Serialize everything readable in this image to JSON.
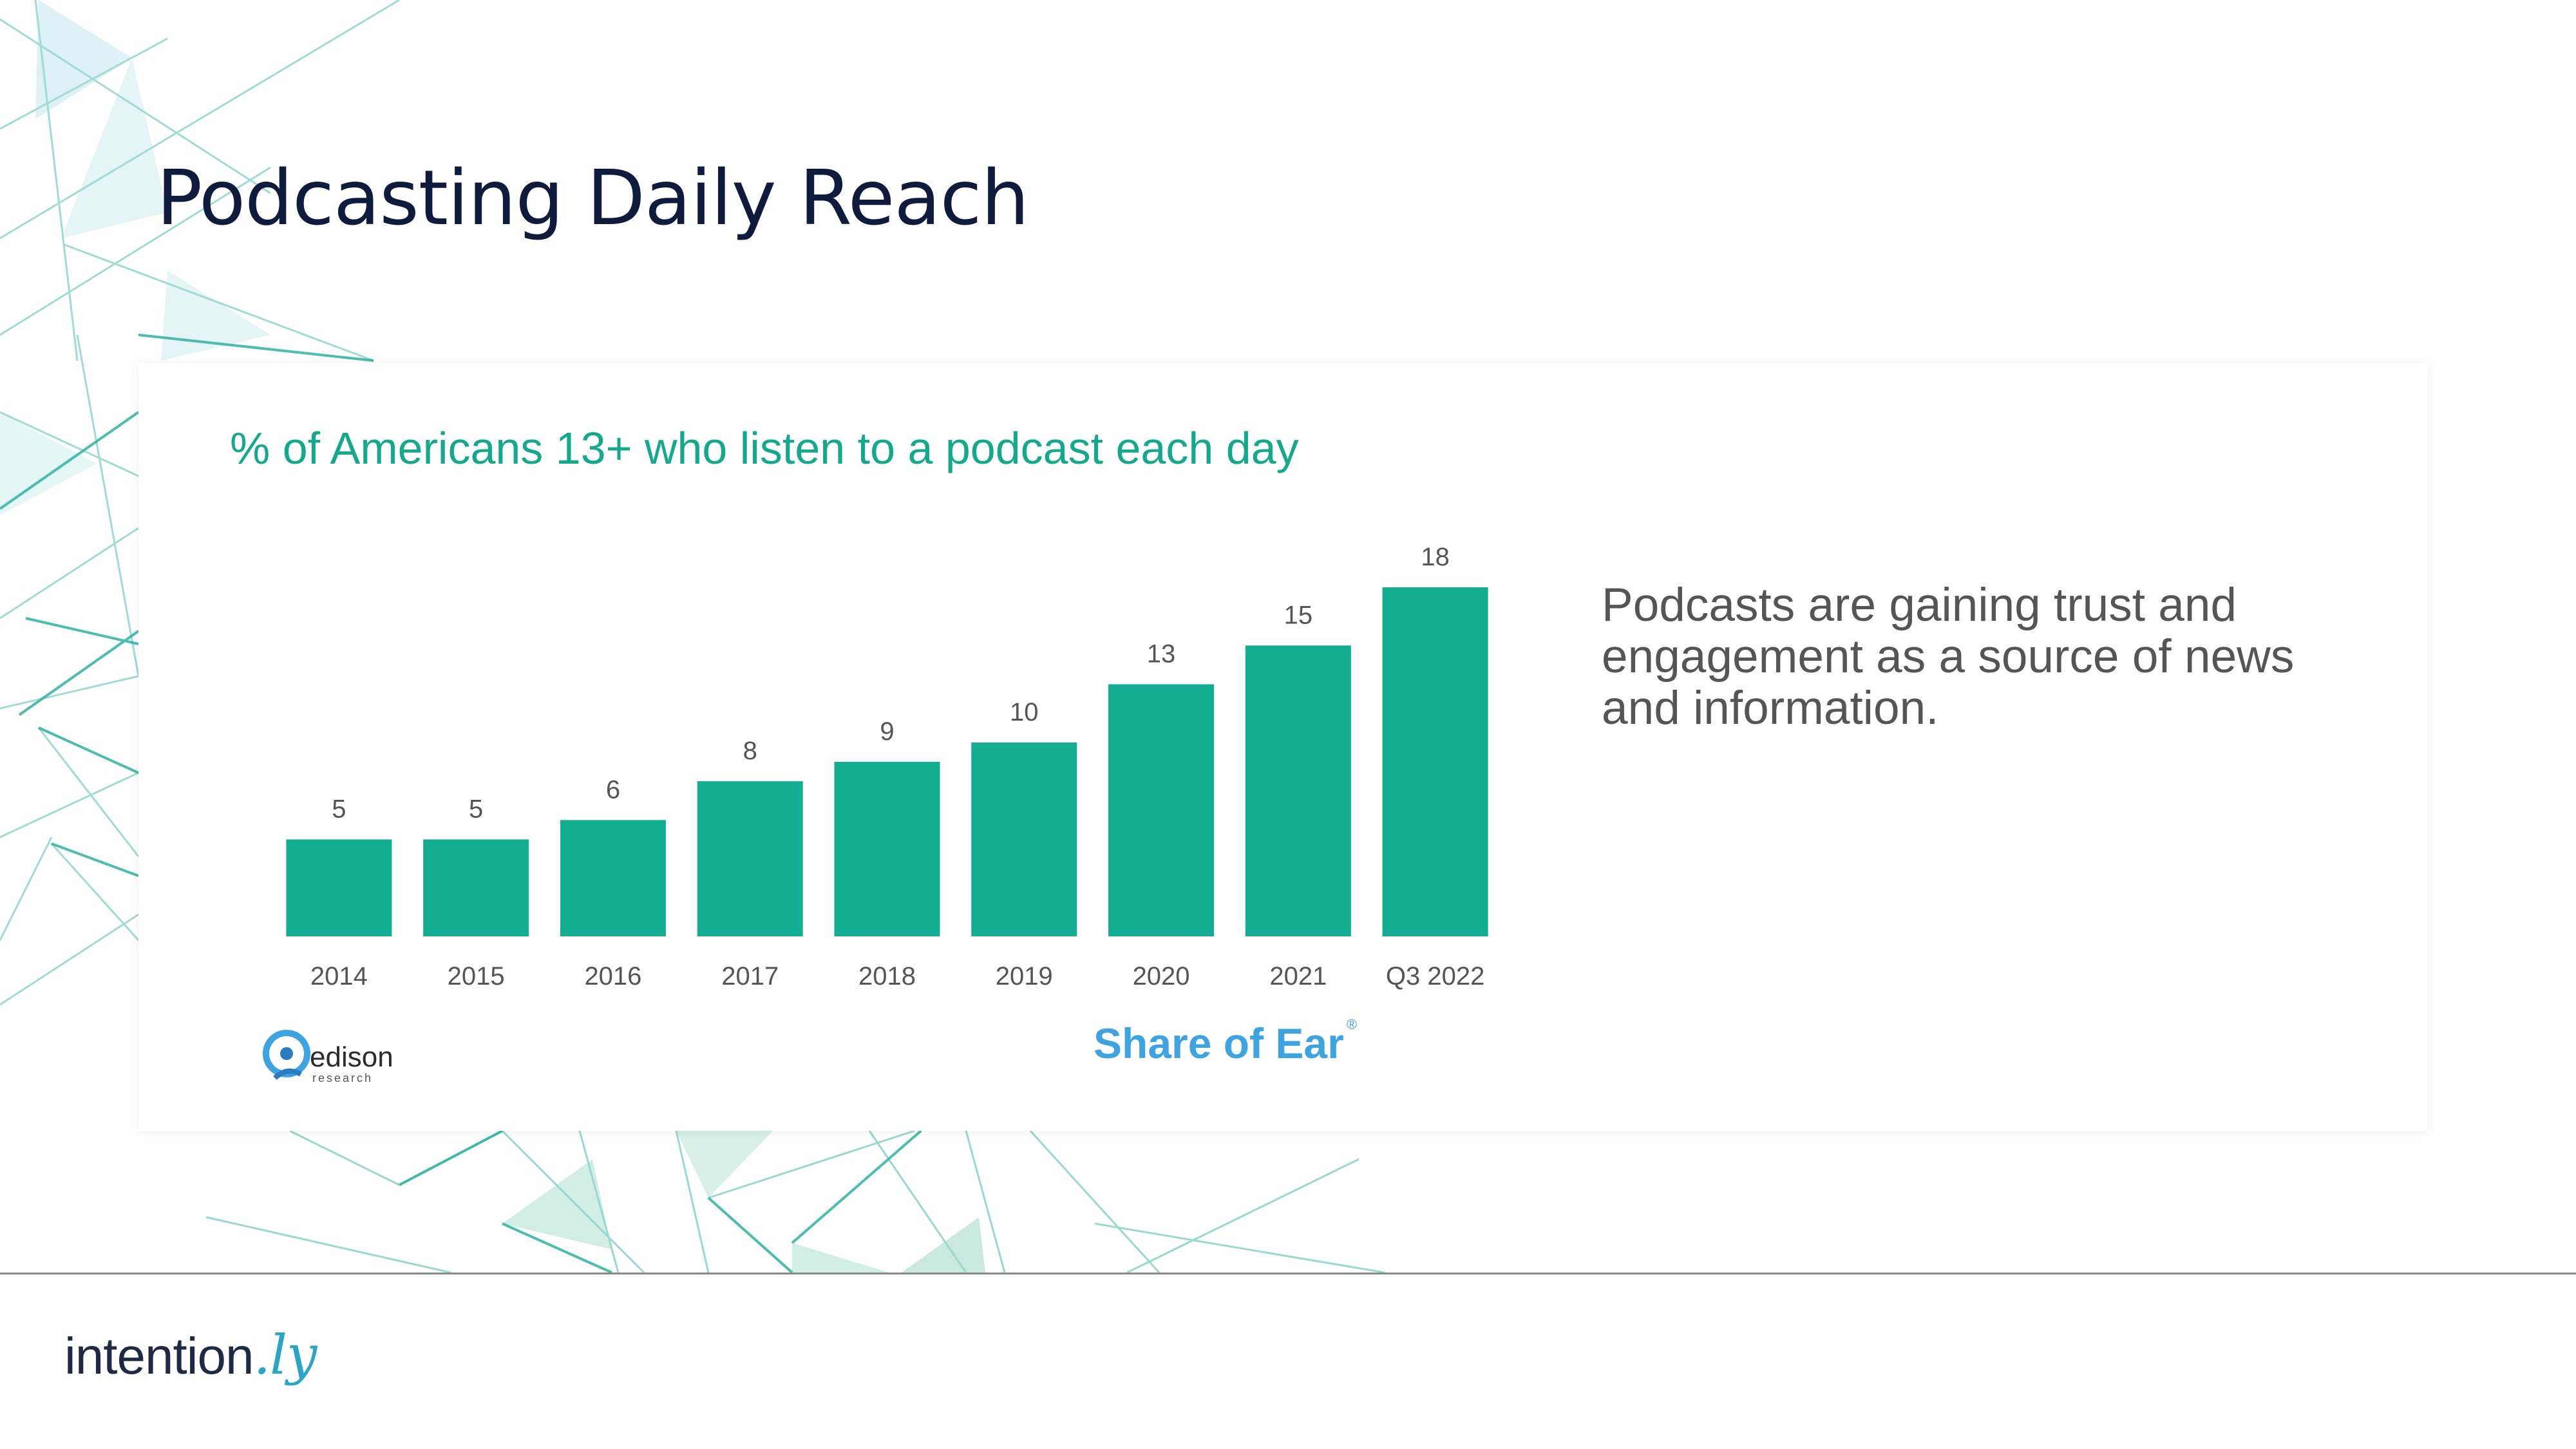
{
  "slide": {
    "title": "Podcasting Daily Reach",
    "note": "Podcasts are gaining trust and engagement as a source of news and information."
  },
  "chart_data": {
    "type": "bar",
    "title": "% of Americans 13+ who listen to a podcast each day",
    "categories": [
      "2014",
      "2015",
      "2016",
      "2017",
      "2018",
      "2019",
      "2020",
      "2021",
      "Q3 2022"
    ],
    "values": [
      5,
      5,
      6,
      8,
      9,
      10,
      13,
      15,
      18
    ],
    "ylim": [
      0,
      18
    ],
    "grid": false,
    "legend": "none",
    "bar_color": "#13ae92",
    "data_labels": true
  },
  "sources": {
    "edison_name": "edison",
    "edison_sub": "research",
    "share_of_ear": "Share of Ear",
    "share_mark": "®"
  },
  "brand": {
    "name": "intention",
    "tld": ".ly"
  },
  "colors": {
    "title": "#0e1b3d",
    "accent_green": "#13a98c",
    "share_blue": "#3da3e1",
    "pattern_teal": "#2bb3a0"
  },
  "icons": {
    "edison": "edison-research-logo",
    "background": "triangle-pattern"
  }
}
